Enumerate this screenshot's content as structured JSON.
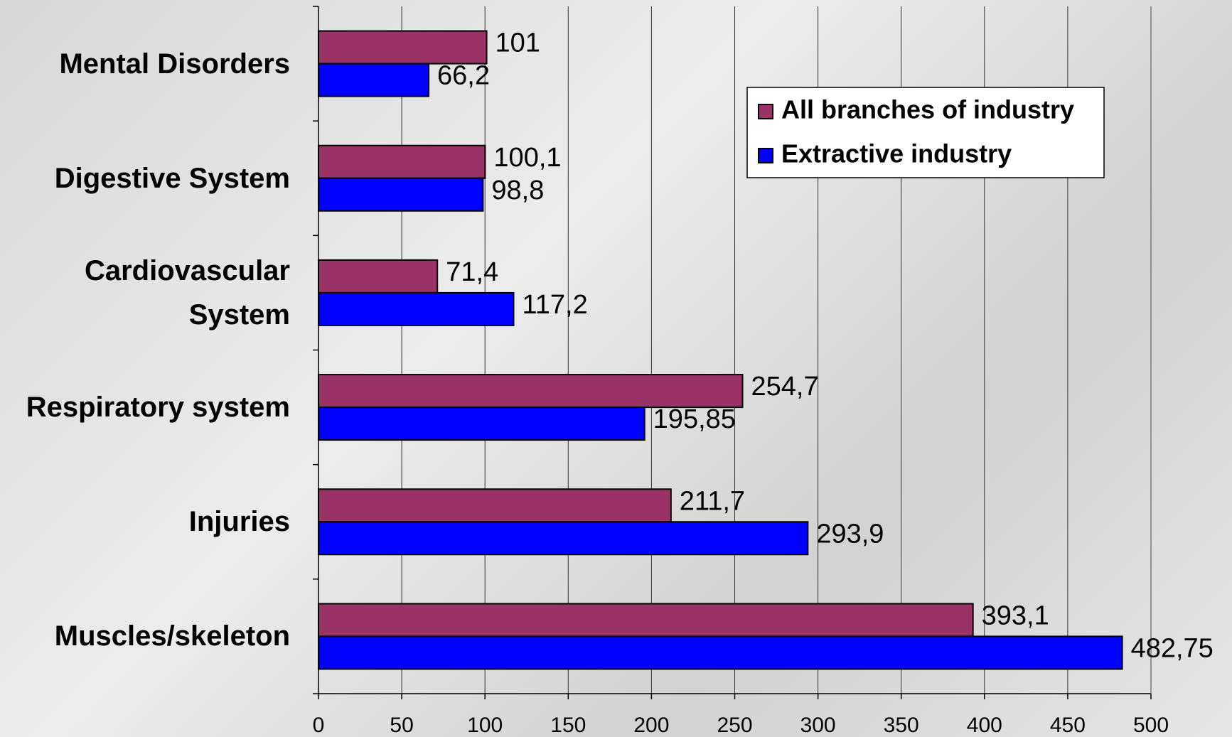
{
  "chart_data": {
    "type": "hbar",
    "categories": [
      "Mental Disorders",
      "Digestive System",
      "Cardiovascular System",
      "Respiratory system",
      "Injuries",
      "Muscles/skeleton"
    ],
    "series": [
      {
        "name": "All branches of industry",
        "color": "#993366",
        "values": [
          101,
          100.1,
          71.4,
          254.7,
          211.7,
          393.1
        ],
        "value_labels": [
          "101",
          "100,1",
          "71,4",
          "254,7",
          "211,7",
          "393,1"
        ]
      },
      {
        "name": "Extractive industry",
        "color": "#0000ff",
        "values": [
          66.2,
          98.8,
          117.2,
          195.85,
          293.9,
          482.75
        ],
        "value_labels": [
          "66,2",
          "98,8",
          "117,2",
          "195,85",
          "293,9",
          "482,75"
        ]
      }
    ],
    "xlim": [
      0,
      500
    ],
    "xticks": [
      0,
      50,
      100,
      150,
      200,
      250,
      300,
      350,
      400,
      450,
      500
    ],
    "grid": true,
    "legend": "top-right"
  }
}
